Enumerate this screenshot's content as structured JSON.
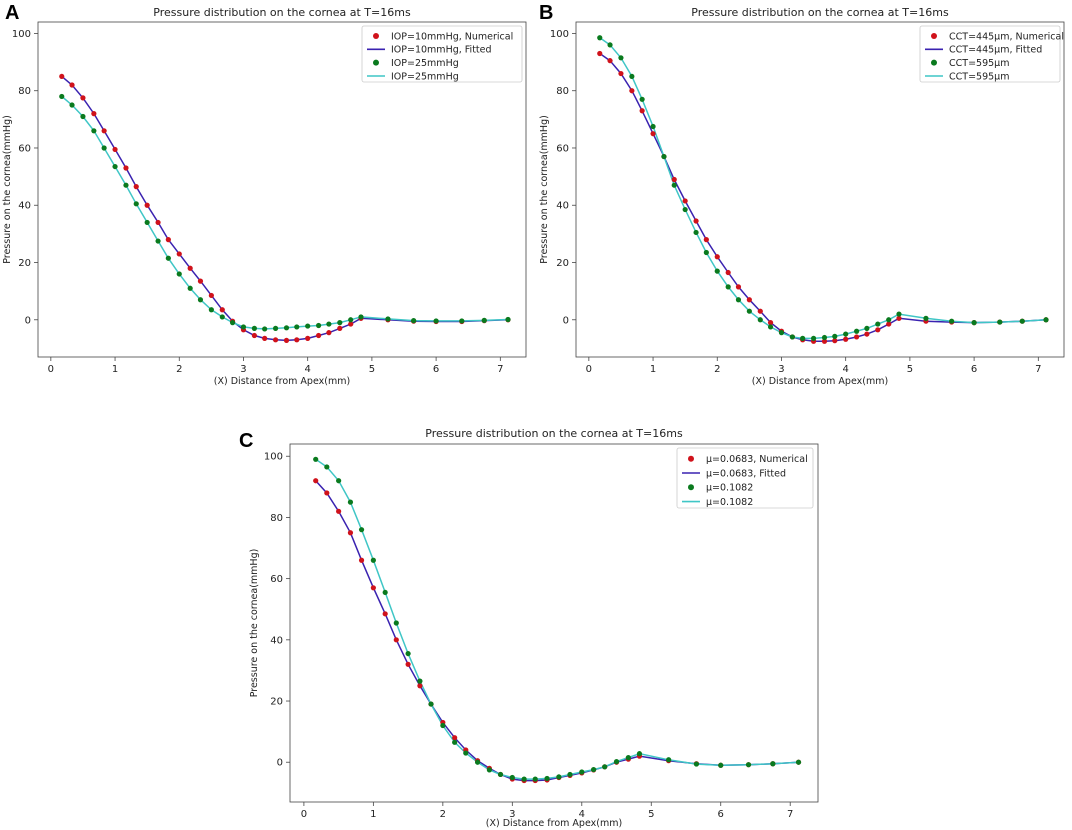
{
  "colors": {
    "numerical": "#d0121b",
    "fitted": "#3a22b0",
    "secondary_points": "#0a7a1e",
    "secondary_line": "#3fc6c6"
  },
  "chart_data": [
    {
      "panel": "A",
      "type": "line",
      "title": "Pressure distribution on the cornea at T=16ms",
      "xlabel": "(X) Distance from Apex(mm)",
      "ylabel": "Pressure on the cornea(mmHg)",
      "xlim": [
        -0.2,
        7.4
      ],
      "ylim": [
        -13,
        104
      ],
      "xticks": [
        "0",
        "1",
        "2",
        "3",
        "4",
        "5",
        "6",
        "7"
      ],
      "yticks": [
        "0",
        "20",
        "40",
        "60",
        "80",
        "100"
      ],
      "legend_position": "top-right",
      "legend": [
        "IOP=10mmHg, Numerical",
        "IOP=10mmHg, Fitted",
        "IOP=25mmHg",
        "IOP=25mmHg"
      ],
      "x": [
        0.17,
        0.33,
        0.5,
        0.67,
        0.83,
        1.0,
        1.17,
        1.33,
        1.5,
        1.67,
        1.83,
        2.0,
        2.17,
        2.33,
        2.5,
        2.67,
        2.83,
        3.0,
        3.17,
        3.33,
        3.5,
        3.67,
        3.83,
        4.0,
        4.17,
        4.33,
        4.5,
        4.67,
        4.83,
        5.25,
        5.65,
        6.0,
        6.4,
        6.75,
        7.12
      ],
      "series": [
        {
          "name": "IOP=10mmHg, Numerical",
          "values": [
            85,
            82,
            77.5,
            72,
            66,
            59.5,
            53,
            46.5,
            40,
            34,
            28,
            23,
            18,
            13.5,
            8.5,
            3.5,
            -0.5,
            -3.5,
            -5.5,
            -6.5,
            -7,
            -7.2,
            -7,
            -6.5,
            -5.5,
            -4.5,
            -3,
            -1.5,
            0.5,
            0,
            -0.5,
            -0.6,
            -0.6,
            -0.3,
            0
          ]
        },
        {
          "name": "IOP=25mmHg",
          "values": [
            78,
            75,
            71,
            66,
            60,
            53.5,
            47,
            40.5,
            34,
            27.5,
            21.5,
            16,
            11,
            7,
            3.5,
            1,
            -1,
            -2.5,
            -3,
            -3.2,
            -3,
            -2.8,
            -2.5,
            -2.2,
            -2,
            -1.5,
            -1,
            0,
            1,
            0.3,
            -0.3,
            -0.4,
            -0.4,
            -0.2,
            0.1
          ]
        }
      ]
    },
    {
      "panel": "B",
      "type": "line",
      "title": "Pressure distribution on the cornea at T=16ms",
      "xlabel": "(X) Distance from Apex(mm)",
      "ylabel": "Pressure on the cornea(mmHg)",
      "xlim": [
        -0.2,
        7.4
      ],
      "ylim": [
        -13,
        104
      ],
      "xticks": [
        "0",
        "1",
        "2",
        "3",
        "4",
        "5",
        "6",
        "7"
      ],
      "yticks": [
        "0",
        "20",
        "40",
        "60",
        "80",
        "100"
      ],
      "legend_position": "top-right",
      "legend": [
        "CCT=445μm, Numerical",
        "CCT=445μm, Fitted",
        "CCT=595μm",
        "CCT=595μm"
      ],
      "x": [
        0.17,
        0.33,
        0.5,
        0.67,
        0.83,
        1.0,
        1.17,
        1.33,
        1.5,
        1.67,
        1.83,
        2.0,
        2.17,
        2.33,
        2.5,
        2.67,
        2.83,
        3.0,
        3.17,
        3.33,
        3.5,
        3.67,
        3.83,
        4.0,
        4.17,
        4.33,
        4.5,
        4.67,
        4.83,
        5.25,
        5.65,
        6.0,
        6.4,
        6.75,
        7.12
      ],
      "series": [
        {
          "name": "CCT=445μm, Numerical",
          "values": [
            93,
            90.5,
            86,
            80,
            73,
            65,
            57,
            49,
            41.5,
            34.5,
            28,
            22,
            16.5,
            11.5,
            7,
            3,
            -1,
            -4,
            -6,
            -7,
            -7.5,
            -7.5,
            -7.3,
            -6.8,
            -6,
            -5,
            -3.5,
            -1.5,
            0.5,
            -0.5,
            -0.8,
            -1,
            -0.8,
            -0.5,
            0
          ]
        },
        {
          "name": "CCT=595μm",
          "values": [
            98.5,
            96,
            91.5,
            85,
            77,
            67.5,
            57,
            47,
            38.5,
            30.5,
            23.5,
            17,
            11.5,
            7,
            3,
            0,
            -2.5,
            -4.5,
            -6,
            -6.5,
            -6.5,
            -6.2,
            -5.8,
            -5,
            -4,
            -3,
            -1.5,
            0,
            2,
            0.5,
            -0.5,
            -1,
            -0.8,
            -0.5,
            0
          ]
        }
      ]
    },
    {
      "panel": "C",
      "type": "line",
      "title": "Pressure distribution on the cornea at T=16ms",
      "xlabel": "(X) Distance from Apex(mm)",
      "ylabel": "Pressure on the cornea(mmHg)",
      "xlim": [
        -0.2,
        7.4
      ],
      "ylim": [
        -13,
        104
      ],
      "xticks": [
        "0",
        "1",
        "2",
        "3",
        "4",
        "5",
        "6",
        "7"
      ],
      "yticks": [
        "0",
        "20",
        "40",
        "60",
        "80",
        "100"
      ],
      "legend_position": "top-right",
      "legend": [
        "μ=0.0683, Numerical",
        "μ=0.0683, Fitted",
        "μ=0.1082",
        "μ=0.1082"
      ],
      "x": [
        0.17,
        0.33,
        0.5,
        0.67,
        0.83,
        1.0,
        1.17,
        1.33,
        1.5,
        1.67,
        1.83,
        2.0,
        2.17,
        2.33,
        2.5,
        2.67,
        2.83,
        3.0,
        3.17,
        3.33,
        3.5,
        3.67,
        3.83,
        4.0,
        4.17,
        4.33,
        4.5,
        4.67,
        4.83,
        5.25,
        5.65,
        6.0,
        6.4,
        6.75,
        7.12
      ],
      "series": [
        {
          "name": "μ=0.0683, Numerical",
          "values": [
            92,
            88,
            82,
            75,
            66,
            57,
            48.5,
            40,
            32,
            25,
            19,
            13,
            8,
            4,
            0.5,
            -2,
            -4,
            -5.5,
            -6,
            -6,
            -5.8,
            -5,
            -4.3,
            -3.5,
            -2.5,
            -1.5,
            0,
            1,
            2,
            0.5,
            -0.5,
            -1,
            -0.8,
            -0.5,
            0
          ]
        },
        {
          "name": "μ=0.1082",
          "values": [
            99,
            96.5,
            92,
            85,
            76,
            66,
            55.5,
            45.5,
            35.5,
            26.5,
            19,
            12,
            6.5,
            3,
            0,
            -2.5,
            -4,
            -5,
            -5.5,
            -5.5,
            -5.3,
            -4.8,
            -4,
            -3.2,
            -2.4,
            -1.5,
            0.2,
            1.5,
            2.8,
            0.8,
            -0.6,
            -1,
            -0.8,
            -0.5,
            0
          ]
        }
      ]
    }
  ]
}
